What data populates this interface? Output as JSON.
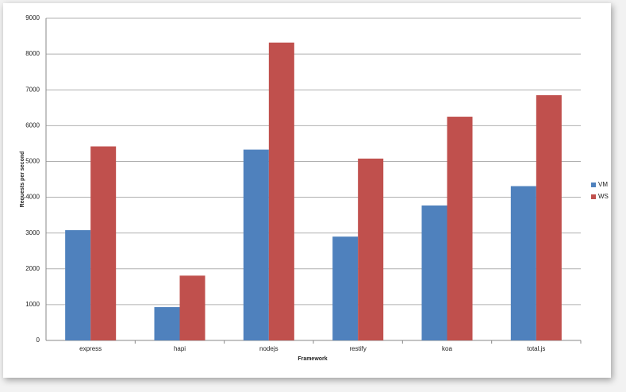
{
  "chart_data": {
    "type": "bar",
    "x_label": "Framework",
    "y_label": "Requests per second",
    "categories": [
      "express",
      "hapi",
      "nodejs",
      "restify",
      "koa",
      "total.js"
    ],
    "series": [
      {
        "name": "VM",
        "color": "#4f81bd",
        "values": [
          3080,
          930,
          5330,
          2900,
          3770,
          4310
        ]
      },
      {
        "name": "WS",
        "color": "#c0504d",
        "values": [
          5420,
          1810,
          8320,
          5080,
          6250,
          6850
        ]
      }
    ],
    "ylim": [
      0,
      9000
    ],
    "yticks": [
      0,
      1000,
      2000,
      3000,
      4000,
      5000,
      6000,
      7000,
      8000,
      9000
    ],
    "grid": true,
    "legend": "right"
  }
}
